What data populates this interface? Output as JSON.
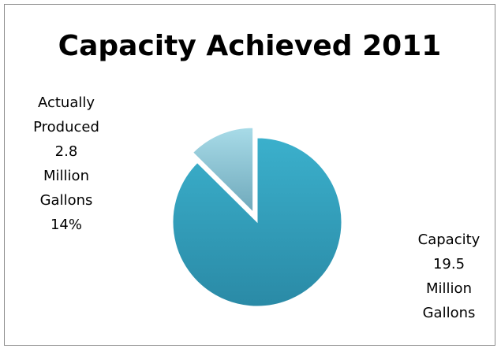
{
  "chart_data": {
    "type": "pie",
    "title": "Capacity Achieved 2011",
    "slices": [
      {
        "label_lines": [
          "Capacity",
          "19.5",
          "Million",
          "Gallons"
        ],
        "value": 19.5,
        "color": "#31a0bc",
        "exploded": false
      },
      {
        "label_lines": [
          "Actually",
          "Produced",
          "2.8",
          "Million",
          "Gallons",
          "14%"
        ],
        "value": 2.8,
        "percent": "14%",
        "color": "#86c8d8",
        "exploded": true
      }
    ]
  }
}
